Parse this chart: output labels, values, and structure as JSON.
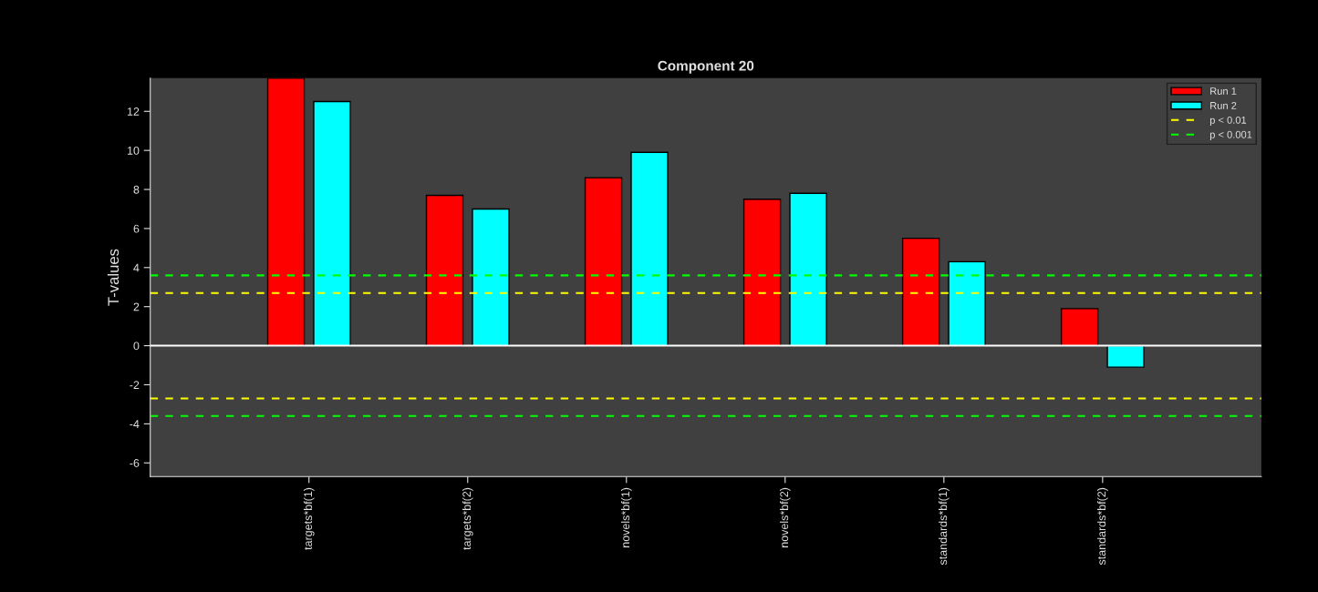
{
  "chart_data": {
    "type": "bar",
    "title": "Component 20",
    "ylabel": "T-values",
    "categories": [
      "targets*bf(1)",
      "targets*bf(2)",
      "novels*bf(1)",
      "novels*bf(2)",
      "standards*bf(1)",
      "standards*bf(2)"
    ],
    "series": [
      {
        "name": "Run 1",
        "color": "#ff0000",
        "values": [
          13.7,
          7.7,
          8.6,
          7.5,
          5.5,
          1.9
        ]
      },
      {
        "name": "Run 2",
        "color": "#00ffff",
        "values": [
          12.5,
          7.0,
          9.9,
          7.8,
          4.3,
          -1.1
        ]
      }
    ],
    "ylim": [
      -6.7,
      13.7
    ],
    "yticks": [
      -6,
      -4,
      -2,
      0,
      2,
      4,
      6,
      8,
      10,
      12
    ],
    "ref_lines": [
      {
        "axis": "y",
        "value": 0,
        "color": "#ffffff",
        "line_style": "solid"
      },
      {
        "axis": "y",
        "value": 2.7,
        "label": "p < 0.01",
        "color": "#ffff00",
        "line_style": "dashed"
      },
      {
        "axis": "y",
        "value": -2.7,
        "color": "#ffff00",
        "line_style": "dashed"
      },
      {
        "axis": "y",
        "value": 3.6,
        "label": "p < 0.001",
        "color": "#00ff00",
        "line_style": "dashed"
      },
      {
        "axis": "y",
        "value": -3.6,
        "color": "#00ff00",
        "line_style": "dashed"
      }
    ],
    "grid": false,
    "legend": "top right"
  }
}
